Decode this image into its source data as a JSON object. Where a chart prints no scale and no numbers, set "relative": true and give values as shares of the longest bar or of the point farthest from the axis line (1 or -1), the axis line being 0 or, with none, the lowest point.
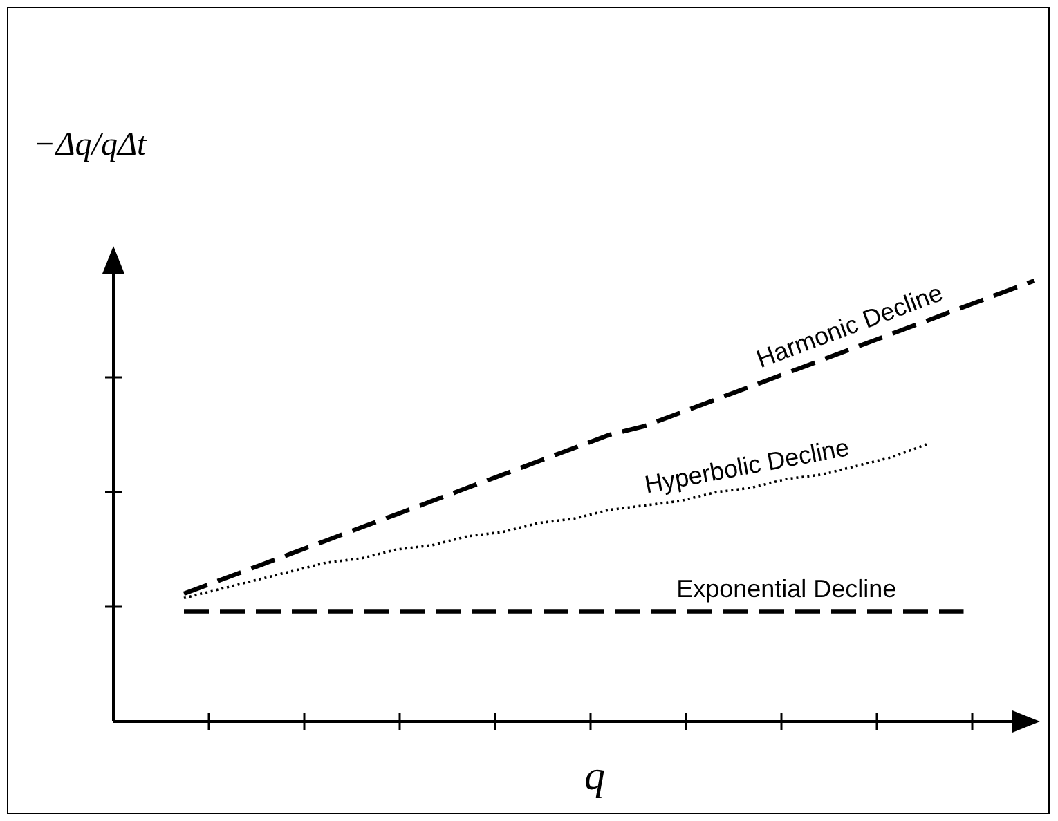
{
  "chart_data": {
    "type": "line",
    "relative": true,
    "xlabel": "q",
    "ylabel": "−Δq/qΔt",
    "legend": false,
    "marker": "none",
    "categories": [
      null,
      null,
      null,
      null,
      null,
      null,
      null,
      null,
      null,
      null,
      null,
      null,
      null,
      null,
      null,
      null,
      null,
      null,
      null,
      null,
      null,
      null,
      null,
      null,
      null
    ],
    "series": [
      {
        "name": "Harmonic Decline",
        "color": "#000000",
        "line_style": "dashed",
        "values": [
          0.29,
          0.32,
          0.35,
          0.38,
          0.41,
          0.44,
          0.47,
          0.5,
          0.53,
          0.56,
          0.59,
          0.62,
          0.65,
          0.67,
          0.7,
          0.73,
          0.76,
          0.79,
          0.82,
          0.85,
          0.88,
          0.91,
          0.94,
          0.97,
          1.0
        ]
      },
      {
        "name": "Hyperbolic Decline",
        "color": "#000000",
        "line_style": "dotted",
        "values": [
          0.28,
          0.3,
          0.32,
          0.34,
          0.36,
          0.37,
          0.39,
          0.4,
          0.42,
          0.43,
          0.45,
          0.46,
          0.48,
          0.49,
          0.5,
          0.52,
          0.53,
          0.55,
          0.56,
          0.58,
          0.6,
          0.63,
          null,
          null,
          null
        ]
      },
      {
        "name": "Exponential Decline",
        "color": "#000000",
        "line_style": "dashed",
        "values": [
          0.25,
          0.25,
          0.25,
          0.25,
          0.25,
          0.25,
          0.25,
          0.25,
          0.25,
          0.25,
          0.25,
          0.25,
          0.25,
          0.25,
          0.25,
          0.25,
          0.25,
          0.25,
          0.25,
          0.25,
          0.25,
          0.25,
          0.25,
          null,
          null
        ]
      }
    ]
  }
}
